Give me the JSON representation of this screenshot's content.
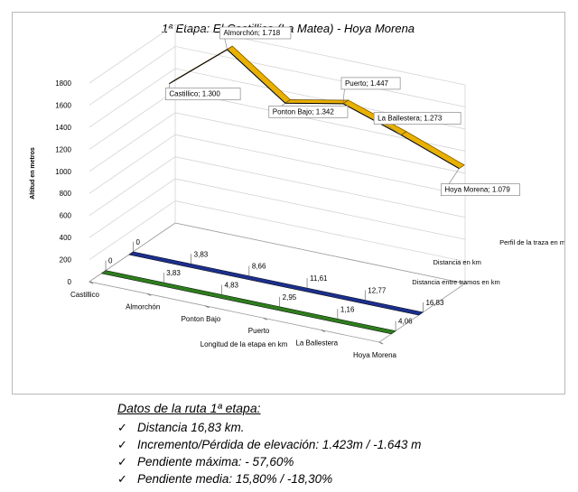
{
  "chart_data": {
    "type": "line",
    "title": "1ª Etapa: El Castillico (La Matea) - Hoya Morena",
    "ylabel": "Altitud en metros",
    "xlabel": "Longitud de la etapa en km",
    "ylim": [
      0,
      1800
    ],
    "yticks": [
      "0",
      "200",
      "400",
      "600",
      "800",
      "1000",
      "1200",
      "1400",
      "1600",
      "1800"
    ],
    "categories": [
      "Castillico",
      "Almorchón",
      "Ponton Bajo",
      "Puerto",
      "La Ballestera",
      "Hoya Morena"
    ],
    "grid": true,
    "legend_position": "right",
    "series": [
      {
        "name": "Perfil de la traza en metros",
        "color": "#e8b000",
        "values": [
          1300,
          1718,
          1342,
          1447,
          1273,
          1079
        ],
        "labels": [
          "Castillico; 1.300",
          "Almorchón; 1.718",
          "Ponton Bajo; 1.342",
          "Puerto; 1.447",
          "La Ballestera; 1.273",
          "Hoya Morena; 1.079"
        ]
      },
      {
        "name": "Distancia en km",
        "color": "#1c2f8c",
        "values": [
          0,
          3.83,
          8.66,
          11.61,
          12.77,
          16.83
        ],
        "labels": [
          "0",
          "3,83",
          "8,66",
          "11,61",
          "12,77",
          "16,83"
        ]
      },
      {
        "name": "Distancia entre tramos en km",
        "color": "#2e7d1e",
        "values": [
          0,
          3.83,
          4.83,
          2.95,
          1.16,
          4.06
        ],
        "labels": [
          "0",
          "3,83",
          "4,83",
          "2,95",
          "1,16",
          "4,06"
        ]
      }
    ]
  },
  "notes": {
    "title": "Datos de la ruta 1ª etapa:",
    "check_glyph": "✓",
    "items": [
      "Distancia 16,83 km.",
      "Incremento/Pérdida de elevación: 1.423m / -1.643 m",
      "Pendiente máxima: - 57,60%",
      "Pendiente media:   15,80% / -18,30%"
    ]
  }
}
